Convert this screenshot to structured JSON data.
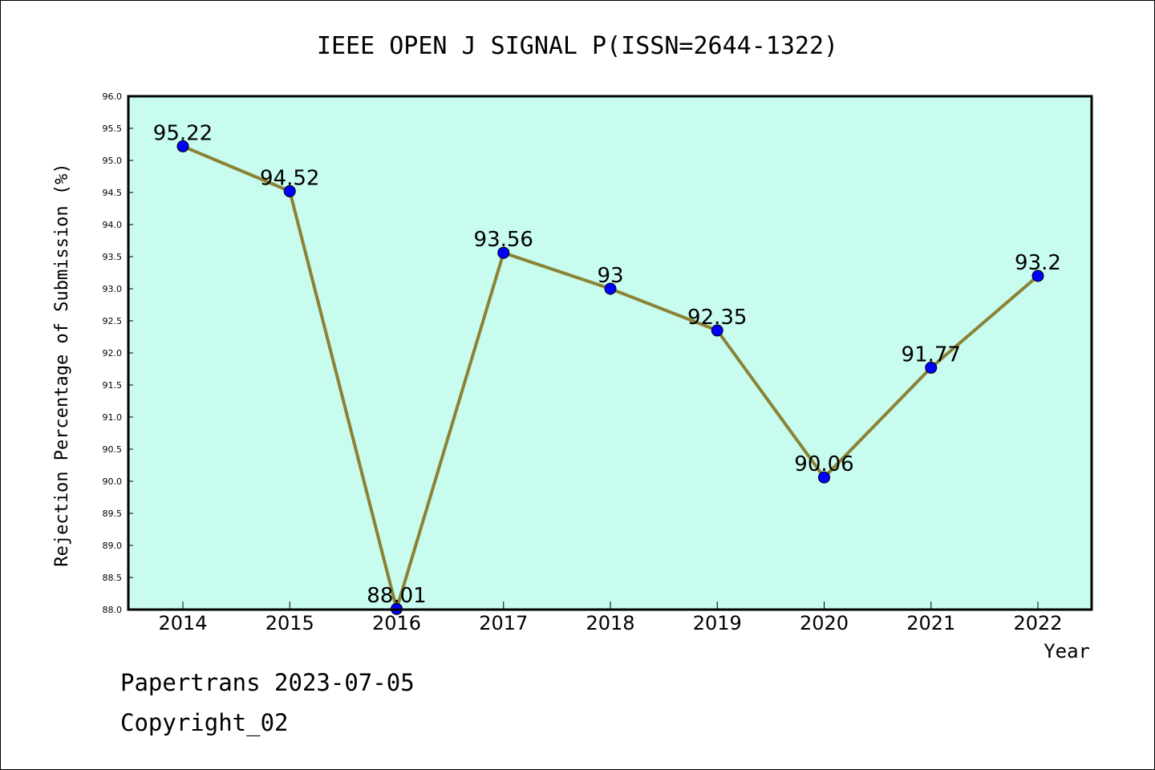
{
  "chart_data": {
    "type": "line",
    "title": "IEEE OPEN J SIGNAL P(ISSN=2644-1322)",
    "xlabel": "Year",
    "ylabel": "Rejection Percentage of Submission (%)",
    "categories": [
      "2014",
      "2015",
      "2016",
      "2017",
      "2018",
      "2019",
      "2020",
      "2021",
      "2022"
    ],
    "values": [
      95.22,
      94.52,
      88.01,
      93.56,
      93,
      92.35,
      90.06,
      91.77,
      93.2
    ],
    "data_labels": [
      "95.22",
      "94.52",
      "88.01",
      "93.56",
      "93",
      "92.35",
      "90.06",
      "91.77",
      "93.2"
    ],
    "ylim": [
      88.0,
      96.0
    ],
    "yticks": [
      "88.0",
      "88.5",
      "89.0",
      "89.5",
      "90.0",
      "90.5",
      "91.0",
      "91.5",
      "92.0",
      "92.5",
      "93.0",
      "93.5",
      "94.0",
      "94.5",
      "95.0",
      "95.5",
      "96.0"
    ],
    "grid": false,
    "colors": {
      "plot_background": "#c8fcee",
      "line": "#8b8236",
      "marker": "#0000ff"
    }
  },
  "footer": {
    "line1": "Papertrans 2023-07-05",
    "line2": "Copyright_02"
  }
}
